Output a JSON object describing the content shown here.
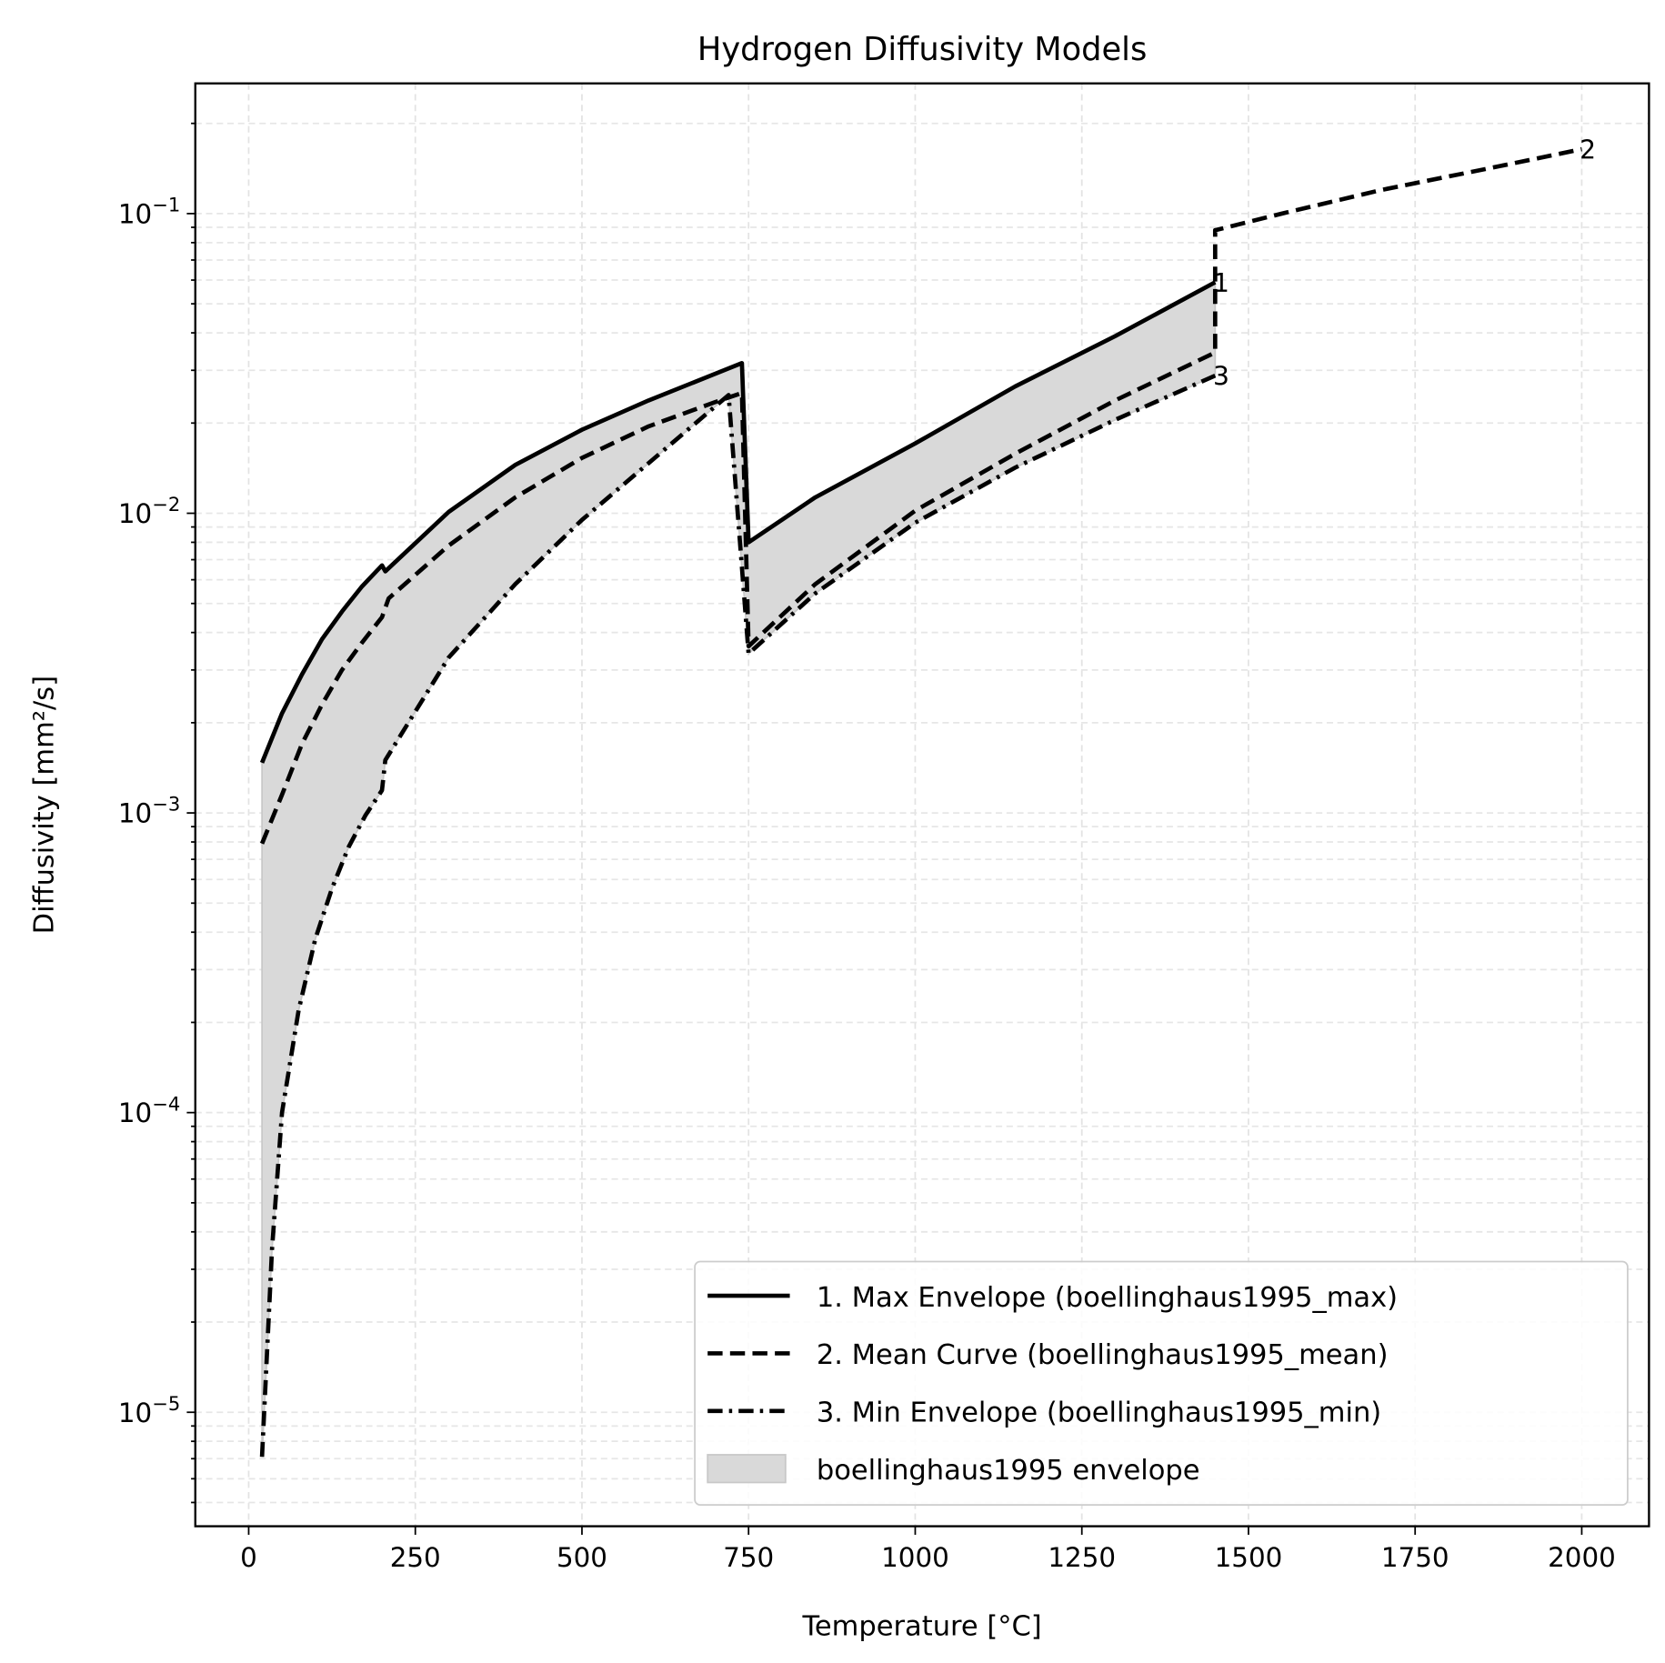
{
  "chart_data": {
    "type": "line",
    "title": "Hydrogen Diffusivity Models",
    "xlabel": "Temperature [°C]",
    "ylabel": "Diffusivity [mm²/s]",
    "xlim": [
      -80,
      2070
    ],
    "ylim": [
      4.2e-06,
      0.27
    ],
    "yscale": "log",
    "grid": true,
    "legend_position": "lower-right",
    "xticks": [
      "0",
      "250",
      "500",
      "750",
      "1000",
      "1250",
      "1500",
      "1750",
      "2000"
    ],
    "xtick_values": [
      0,
      250,
      500,
      750,
      1000,
      1250,
      1500,
      1750,
      2000
    ],
    "yticks": [
      {
        "base": "10",
        "exp": "−1",
        "value": 0.1
      },
      {
        "base": "10",
        "exp": "−2",
        "value": 0.01
      },
      {
        "base": "10",
        "exp": "−3",
        "value": 0.001
      },
      {
        "base": "10",
        "exp": "−4",
        "value": 0.0001
      },
      {
        "base": "10",
        "exp": "−5",
        "value": 1e-05
      }
    ],
    "series": [
      {
        "name": "1. Max Envelope (boellinghaus1995_max)",
        "style": "solid",
        "end_label": "1",
        "points": [
          [
            20,
            0.00147
          ],
          [
            50,
            0.00215
          ],
          [
            80,
            0.0029
          ],
          [
            110,
            0.0038
          ],
          [
            140,
            0.0047
          ],
          [
            170,
            0.0057
          ],
          [
            200,
            0.0067
          ],
          [
            205,
            0.0064
          ],
          [
            300,
            0.0101
          ],
          [
            400,
            0.0145
          ],
          [
            500,
            0.019
          ],
          [
            600,
            0.0238
          ],
          [
            700,
            0.0292
          ],
          [
            740,
            0.0317
          ],
          [
            750,
            0.008
          ],
          [
            850,
            0.0113
          ],
          [
            1000,
            0.0171
          ],
          [
            1150,
            0.0265
          ],
          [
            1300,
            0.039
          ],
          [
            1450,
            0.059
          ]
        ]
      },
      {
        "name": "2. Mean Curve (boellinghaus1995_mean)",
        "style": "dashed",
        "end_label": "2",
        "points": [
          [
            20,
            0.00079
          ],
          [
            50,
            0.00115
          ],
          [
            80,
            0.0017
          ],
          [
            110,
            0.0023
          ],
          [
            140,
            0.003
          ],
          [
            170,
            0.0037
          ],
          [
            200,
            0.0045
          ],
          [
            210,
            0.0052
          ],
          [
            300,
            0.0078
          ],
          [
            400,
            0.0113
          ],
          [
            500,
            0.0153
          ],
          [
            600,
            0.0195
          ],
          [
            700,
            0.0235
          ],
          [
            740,
            0.0252
          ],
          [
            750,
            0.0036
          ],
          [
            850,
            0.0058
          ],
          [
            1000,
            0.0102
          ],
          [
            1150,
            0.0158
          ],
          [
            1300,
            0.0238
          ],
          [
            1450,
            0.0344
          ],
          [
            1450,
            0.088
          ],
          [
            1550,
            0.1
          ],
          [
            1700,
            0.12
          ],
          [
            1850,
            0.14
          ],
          [
            2000,
            0.164
          ]
        ]
      },
      {
        "name": "3. Min Envelope (boellinghaus1995_min)",
        "style": "dashdot",
        "end_label": "3",
        "points": [
          [
            20,
            7.1e-06
          ],
          [
            35,
            3.5e-05
          ],
          [
            50,
            0.0001
          ],
          [
            75,
            0.00022
          ],
          [
            100,
            0.00038
          ],
          [
            125,
            0.00056
          ],
          [
            150,
            0.00077
          ],
          [
            175,
            0.00098
          ],
          [
            200,
            0.00119
          ],
          [
            205,
            0.0015
          ],
          [
            300,
            0.0033
          ],
          [
            400,
            0.0058
          ],
          [
            500,
            0.0095
          ],
          [
            600,
            0.0147
          ],
          [
            720,
            0.0248
          ],
          [
            750,
            0.0034
          ],
          [
            850,
            0.0054
          ],
          [
            1000,
            0.0093
          ],
          [
            1150,
            0.0142
          ],
          [
            1300,
            0.0205
          ],
          [
            1450,
            0.0288
          ]
        ]
      }
    ],
    "fill": {
      "name": "boellinghaus1995 envelope",
      "between": [
        "1. Max Envelope (boellinghaus1995_max)",
        "3. Min Envelope (boellinghaus1995_min)"
      ],
      "color": "#d9d9d9"
    }
  }
}
